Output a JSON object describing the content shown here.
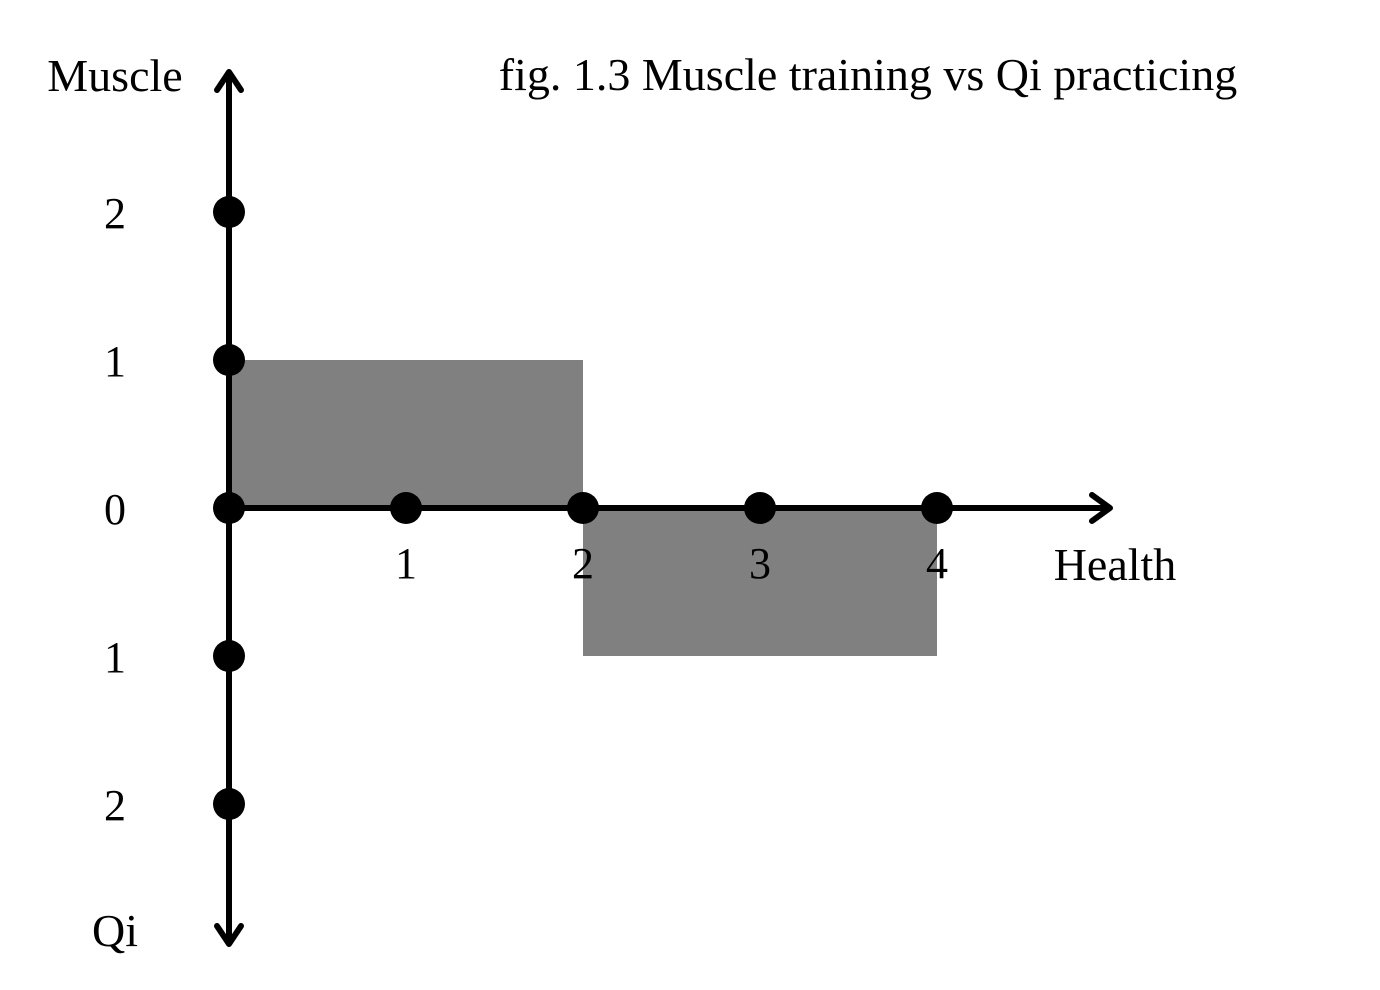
{
  "chart_data": {
    "type": "bar",
    "title": "fig. 1.3 Muscle training vs Qi practicing",
    "xlabel": "Health",
    "ylabel_top": "Muscle",
    "ylabel_bottom": "Qi",
    "x_ticks": [
      {
        "value": 1,
        "label": "1"
      },
      {
        "value": 2,
        "label": "2"
      },
      {
        "value": 3,
        "label": "3"
      },
      {
        "value": 4,
        "label": "4"
      }
    ],
    "y_ticks": [
      {
        "value": 2,
        "label": "2"
      },
      {
        "value": 1,
        "label": "1"
      },
      {
        "value": 0,
        "label": "0"
      },
      {
        "value": -1,
        "label": "1"
      },
      {
        "value": -2,
        "label": "2"
      }
    ],
    "xlim": [
      0,
      5
    ],
    "ylim": [
      -3,
      3
    ],
    "bars": [
      {
        "x_start": 0,
        "x_end": 2,
        "value": 1,
        "color": "#808080"
      },
      {
        "x_start": 2,
        "x_end": 4,
        "value": -1,
        "color": "#808080"
      }
    ],
    "grid": false,
    "axis_color": "#000000"
  }
}
